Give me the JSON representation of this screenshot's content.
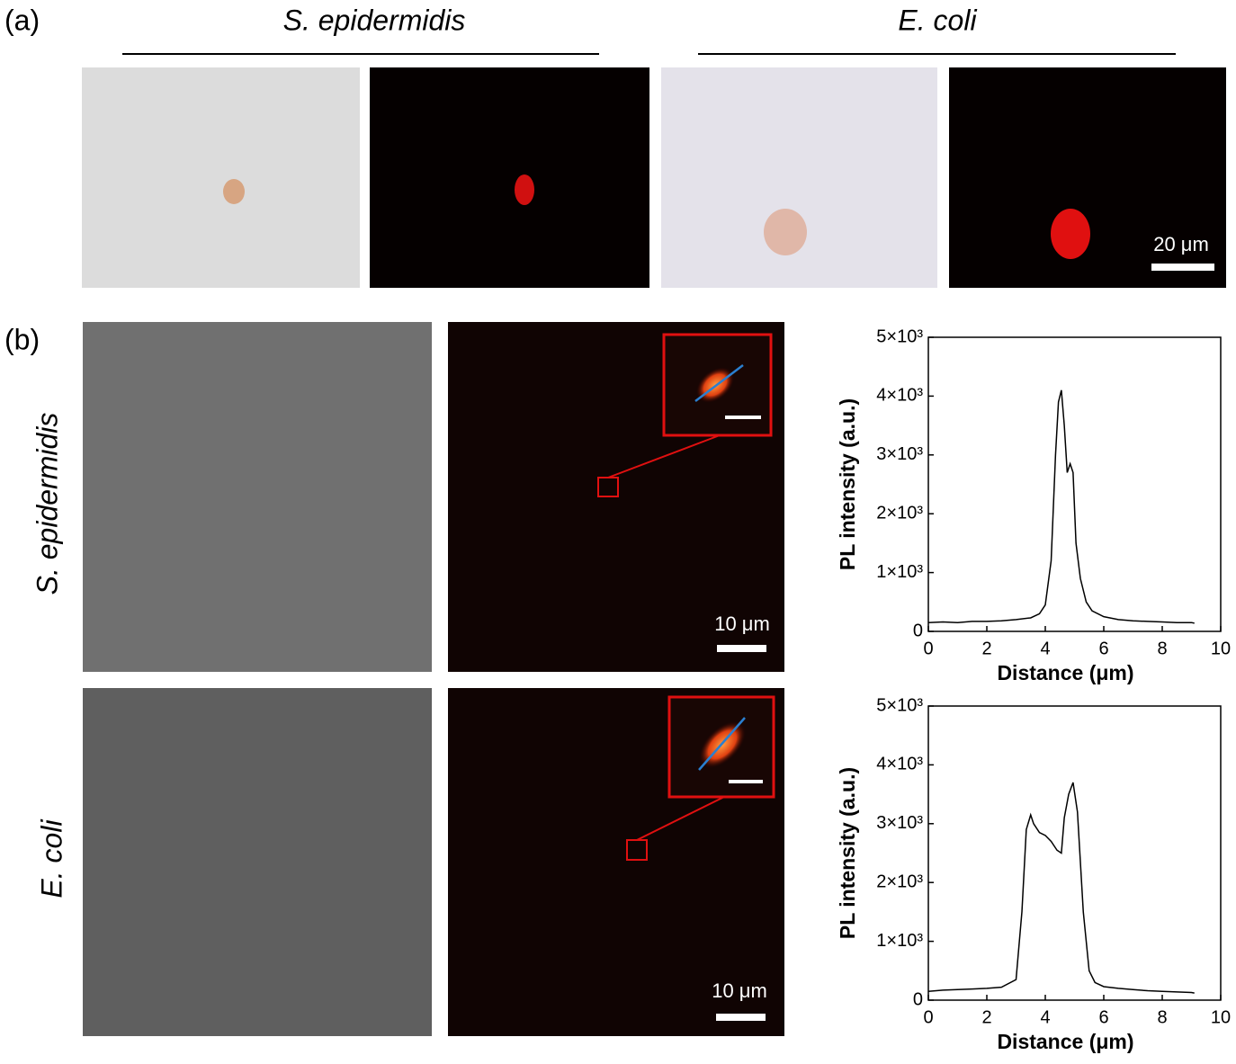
{
  "panels": {
    "a": {
      "label": "(a)",
      "columns": [
        "S. epidermidis",
        "E. coli"
      ],
      "scale_bar": "20 μm"
    },
    "b": {
      "label": "(b)",
      "rows": [
        "S. epidermidis",
        "E. coli"
      ],
      "scale_bars": [
        "10 μm",
        "10 μm"
      ]
    }
  },
  "chart_data": [
    {
      "type": "line",
      "xlabel": "Distance (μm)",
      "ylabel": "PL intensity (a.u.)",
      "color": "#000000",
      "x": [
        0,
        0.5,
        1,
        1.5,
        2,
        2.5,
        3,
        3.5,
        3.8,
        4.0,
        4.2,
        4.35,
        4.45,
        4.55,
        4.65,
        4.75,
        4.85,
        4.95,
        5.05,
        5.2,
        5.4,
        5.6,
        6,
        6.5,
        7,
        7.5,
        8,
        8.5,
        9,
        9.1
      ],
      "values": [
        150,
        160,
        150,
        170,
        170,
        180,
        200,
        230,
        300,
        450,
        1200,
        3000,
        3900,
        4100,
        3500,
        2700,
        2850,
        2700,
        1500,
        900,
        500,
        350,
        250,
        200,
        180,
        170,
        160,
        150,
        150,
        140
      ],
      "xlim": [
        0,
        10
      ],
      "xticks": [
        0,
        2,
        4,
        6,
        8,
        10
      ],
      "ylim": [
        0,
        5000
      ],
      "yticks": [
        0,
        {
          "value": 1000,
          "label": "1×10³"
        },
        {
          "value": 2000,
          "label": "2×10³"
        },
        {
          "value": 3000,
          "label": "3×10³"
        },
        {
          "value": 4000,
          "label": "4×10³"
        },
        {
          "value": 5000,
          "label": "5×10³"
        }
      ]
    },
    {
      "type": "line",
      "xlabel": "Distance (μm)",
      "ylabel": "PL intensity (a.u.)",
      "color": "#000000",
      "x": [
        0,
        0.5,
        1,
        1.5,
        2,
        2.5,
        3,
        3.2,
        3.35,
        3.5,
        3.6,
        3.8,
        4.0,
        4.2,
        4.4,
        4.55,
        4.65,
        4.8,
        4.95,
        5.1,
        5.3,
        5.5,
        5.7,
        6,
        6.5,
        7,
        7.5,
        8,
        8.5,
        9,
        9.1
      ],
      "values": [
        150,
        170,
        180,
        190,
        200,
        220,
        350,
        1500,
        2900,
        3150,
        3000,
        2850,
        2800,
        2700,
        2550,
        2500,
        3100,
        3500,
        3700,
        3200,
        1500,
        500,
        300,
        230,
        200,
        180,
        160,
        150,
        140,
        130,
        120
      ],
      "xlim": [
        0,
        10
      ],
      "xticks": [
        0,
        2,
        4,
        6,
        8,
        10
      ],
      "ylim": [
        0,
        5000
      ],
      "yticks": [
        0,
        {
          "value": 1000,
          "label": "1×10³"
        },
        {
          "value": 2000,
          "label": "2×10³"
        },
        {
          "value": 3000,
          "label": "3×10³"
        },
        {
          "value": 4000,
          "label": "4×10³"
        },
        {
          "value": 5000,
          "label": "5×10³"
        }
      ]
    }
  ]
}
